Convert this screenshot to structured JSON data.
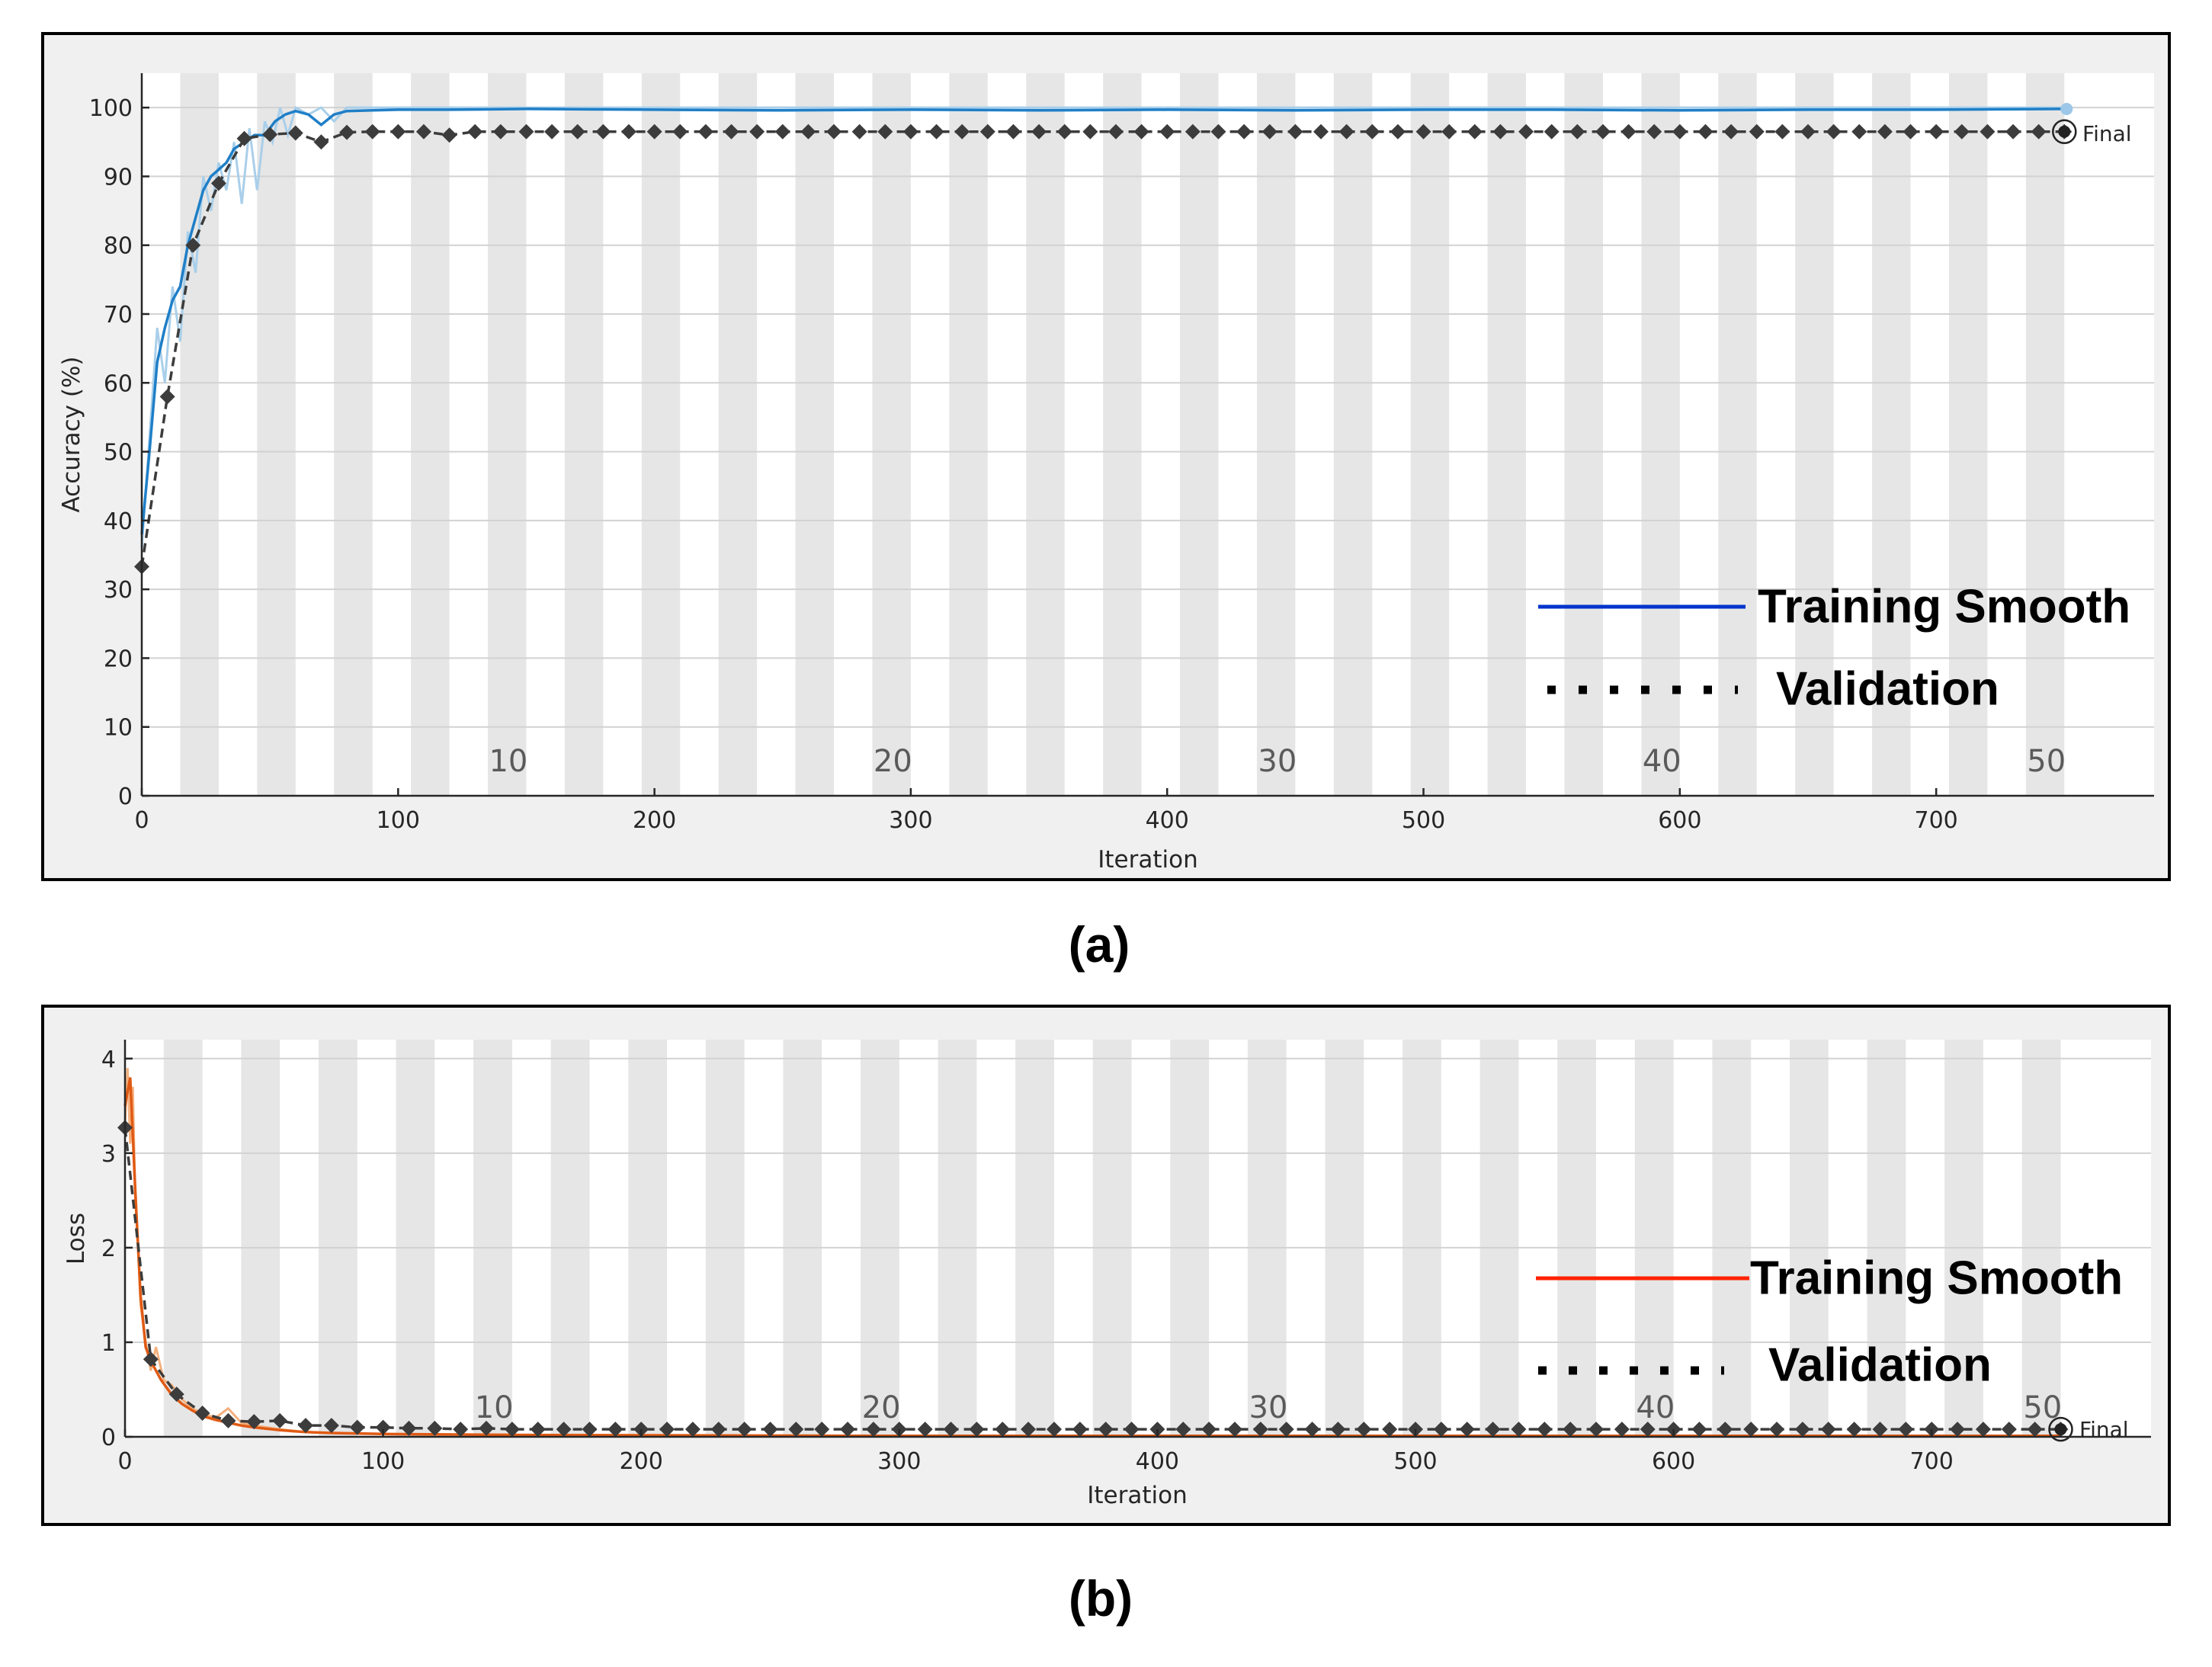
{
  "colors": {
    "accuracy_raw": "#a9cfea",
    "accuracy_smooth": "#1f7fc7",
    "accuracy_legend": "#0033cc",
    "loss_raw": "#f4b07d",
    "loss_smooth": "#e05a14",
    "loss_legend": "#ff2200",
    "validation": "#3c3c3c",
    "band": "#e6e6e6",
    "frame_bg": "#f0f0f0"
  },
  "chart_data": [
    {
      "type": "line",
      "panel": "(a)",
      "xlabel": "Iteration",
      "ylabel": "Accuracy (%)",
      "xlim": [
        0,
        785
      ],
      "ylim": [
        0,
        105
      ],
      "xticks": [
        0,
        100,
        200,
        300,
        400,
        500,
        600,
        700
      ],
      "yticks": [
        0,
        10,
        20,
        30,
        40,
        50,
        60,
        70,
        80,
        90,
        100
      ],
      "epoch_length": 15,
      "epoch_labels": [
        {
          "epoch": "10",
          "x": 143
        },
        {
          "epoch": "20",
          "x": 293
        },
        {
          "epoch": "30",
          "x": 443
        },
        {
          "epoch": "40",
          "x": 593
        },
        {
          "epoch": "50",
          "x": 743
        }
      ],
      "final_label": "Final",
      "final_point": {
        "x": 750,
        "y": 96.5
      },
      "legend": {
        "training": "Training Smooth",
        "validation": "Validation",
        "placement": "lower-right"
      },
      "series": [
        {
          "name": "Training (raw)",
          "x": [
            0,
            3,
            6,
            9,
            12,
            15,
            18,
            21,
            24,
            27,
            30,
            33,
            36,
            39,
            42,
            45,
            48,
            51,
            54,
            57,
            60,
            65,
            70,
            75,
            80,
            90,
            100,
            120,
            150,
            200,
            250,
            300,
            350,
            400,
            450,
            500,
            550,
            600,
            650,
            700,
            750
          ],
          "y": [
            36,
            52,
            68,
            60,
            74,
            66,
            82,
            76,
            90,
            85,
            92,
            88,
            95,
            86,
            97,
            88,
            98,
            95,
            100,
            96,
            100,
            99,
            100,
            98,
            100,
            100,
            100,
            100,
            100,
            100,
            100,
            100,
            100,
            100,
            100,
            100,
            100,
            100,
            100,
            100,
            100
          ]
        },
        {
          "name": "Training Smooth",
          "x": [
            0,
            3,
            6,
            9,
            12,
            15,
            18,
            21,
            24,
            27,
            30,
            33,
            36,
            40,
            44,
            48,
            52,
            56,
            60,
            65,
            70,
            75,
            80,
            90,
            100,
            120,
            150,
            200,
            250,
            300,
            350,
            400,
            450,
            500,
            550,
            600,
            650,
            700,
            750
          ],
          "y": [
            38,
            50,
            63,
            68,
            72,
            74,
            80,
            84,
            88,
            90,
            91,
            92,
            94,
            95,
            96,
            96,
            98,
            99,
            99.5,
            99,
            97.5,
            99,
            99.5,
            99.6,
            99.7,
            99.7,
            99.8,
            99.7,
            99.6,
            99.7,
            99.6,
            99.7,
            99.6,
            99.7,
            99.7,
            99.6,
            99.7,
            99.7,
            99.8
          ]
        },
        {
          "name": "Validation",
          "x": [
            0,
            10,
            20,
            30,
            40,
            50,
            60,
            70,
            80,
            90,
            100,
            110,
            120,
            130,
            140,
            150,
            160,
            170,
            180,
            190,
            200,
            210,
            220,
            230,
            240,
            250,
            260,
            270,
            280,
            290,
            300,
            310,
            320,
            330,
            340,
            350,
            360,
            370,
            380,
            390,
            400,
            410,
            420,
            430,
            440,
            450,
            460,
            470,
            480,
            490,
            500,
            510,
            520,
            530,
            540,
            550,
            560,
            570,
            580,
            590,
            600,
            610,
            620,
            630,
            640,
            650,
            660,
            670,
            680,
            690,
            700,
            710,
            720,
            730,
            740,
            750
          ],
          "y": [
            33.3,
            58,
            80,
            89,
            95.5,
            96.1,
            96.3,
            95,
            96.4,
            96.5,
            96.5,
            96.5,
            96,
            96.5,
            96.5,
            96.5,
            96.5,
            96.5,
            96.5,
            96.5,
            96.5,
            96.5,
            96.5,
            96.5,
            96.5,
            96.5,
            96.5,
            96.5,
            96.5,
            96.5,
            96.5,
            96.5,
            96.5,
            96.5,
            96.5,
            96.5,
            96.5,
            96.5,
            96.5,
            96.5,
            96.5,
            96.5,
            96.5,
            96.5,
            96.5,
            96.5,
            96.5,
            96.5,
            96.5,
            96.5,
            96.5,
            96.5,
            96.5,
            96.5,
            96.5,
            96.5,
            96.5,
            96.5,
            96.5,
            96.5,
            96.5,
            96.5,
            96.5,
            96.5,
            96.5,
            96.5,
            96.5,
            96.5,
            96.5,
            96.5,
            96.5,
            96.5,
            96.5,
            96.5,
            96.5,
            96.5
          ]
        }
      ]
    },
    {
      "type": "line",
      "panel": "(b)",
      "xlabel": "Iteration",
      "ylabel": "Loss",
      "xlim": [
        0,
        785
      ],
      "ylim": [
        0,
        4.2
      ],
      "xticks": [
        0,
        100,
        200,
        300,
        400,
        500,
        600,
        700
      ],
      "yticks": [
        0,
        1,
        2,
        3,
        4
      ],
      "epoch_length": 15,
      "epoch_labels": [
        {
          "epoch": "10",
          "x": 143
        },
        {
          "epoch": "20",
          "x": 293
        },
        {
          "epoch": "30",
          "x": 443
        },
        {
          "epoch": "40",
          "x": 593
        },
        {
          "epoch": "50",
          "x": 743
        }
      ],
      "final_label": "Final",
      "final_point": {
        "x": 750,
        "y": 0.08
      },
      "legend": {
        "training": "Training Smooth",
        "validation": "Validation",
        "placement": "lower-right"
      },
      "series": [
        {
          "name": "Training (raw)",
          "x": [
            0,
            1,
            2,
            3,
            4,
            5,
            6,
            8,
            10,
            12,
            15,
            18,
            22,
            26,
            30,
            35,
            40,
            45,
            50,
            60,
            70,
            80,
            100,
            150,
            200,
            300,
            400,
            500,
            600,
            700,
            750
          ],
          "y": [
            3.3,
            3.9,
            3.1,
            3.7,
            2.5,
            2.1,
            1.4,
            1.0,
            0.7,
            0.95,
            0.6,
            0.55,
            0.4,
            0.3,
            0.25,
            0.2,
            0.3,
            0.15,
            0.12,
            0.08,
            0.05,
            0.04,
            0.03,
            0.02,
            0.02,
            0.01,
            0.01,
            0.01,
            0.01,
            0.01,
            0.01
          ]
        },
        {
          "name": "Training Smooth",
          "x": [
            0,
            2,
            4,
            6,
            8,
            10,
            14,
            18,
            22,
            26,
            30,
            35,
            40,
            45,
            50,
            60,
            70,
            80,
            100,
            150,
            200,
            300,
            400,
            500,
            600,
            700,
            750
          ],
          "y": [
            3.5,
            3.8,
            2.6,
            1.5,
            0.95,
            0.8,
            0.6,
            0.45,
            0.35,
            0.28,
            0.22,
            0.18,
            0.15,
            0.12,
            0.1,
            0.07,
            0.05,
            0.04,
            0.03,
            0.02,
            0.015,
            0.01,
            0.01,
            0.01,
            0.01,
            0.01,
            0.01
          ]
        },
        {
          "name": "Validation",
          "x": [
            0,
            10,
            20,
            30,
            40,
            50,
            60,
            70,
            80,
            90,
            100,
            110,
            120,
            130,
            140,
            150,
            160,
            170,
            180,
            190,
            200,
            210,
            220,
            230,
            240,
            250,
            260,
            270,
            280,
            290,
            300,
            310,
            320,
            330,
            340,
            350,
            360,
            370,
            380,
            390,
            400,
            410,
            420,
            430,
            440,
            450,
            460,
            470,
            480,
            490,
            500,
            510,
            520,
            530,
            540,
            550,
            560,
            570,
            580,
            590,
            600,
            610,
            620,
            630,
            640,
            650,
            660,
            670,
            680,
            690,
            700,
            710,
            720,
            730,
            740,
            750
          ],
          "y": [
            3.27,
            0.82,
            0.45,
            0.25,
            0.17,
            0.16,
            0.17,
            0.12,
            0.12,
            0.1,
            0.1,
            0.09,
            0.09,
            0.08,
            0.09,
            0.08,
            0.08,
            0.08,
            0.08,
            0.08,
            0.08,
            0.08,
            0.08,
            0.08,
            0.08,
            0.08,
            0.08,
            0.08,
            0.08,
            0.08,
            0.08,
            0.08,
            0.08,
            0.08,
            0.08,
            0.08,
            0.08,
            0.08,
            0.08,
            0.08,
            0.08,
            0.08,
            0.08,
            0.08,
            0.08,
            0.08,
            0.08,
            0.08,
            0.08,
            0.08,
            0.08,
            0.08,
            0.08,
            0.08,
            0.08,
            0.08,
            0.08,
            0.08,
            0.08,
            0.08,
            0.08,
            0.08,
            0.08,
            0.08,
            0.08,
            0.08,
            0.08,
            0.08,
            0.08,
            0.08,
            0.08,
            0.08,
            0.08,
            0.08,
            0.08,
            0.08
          ]
        }
      ]
    }
  ],
  "captions": {
    "a": "(a)",
    "b": "(b)"
  }
}
